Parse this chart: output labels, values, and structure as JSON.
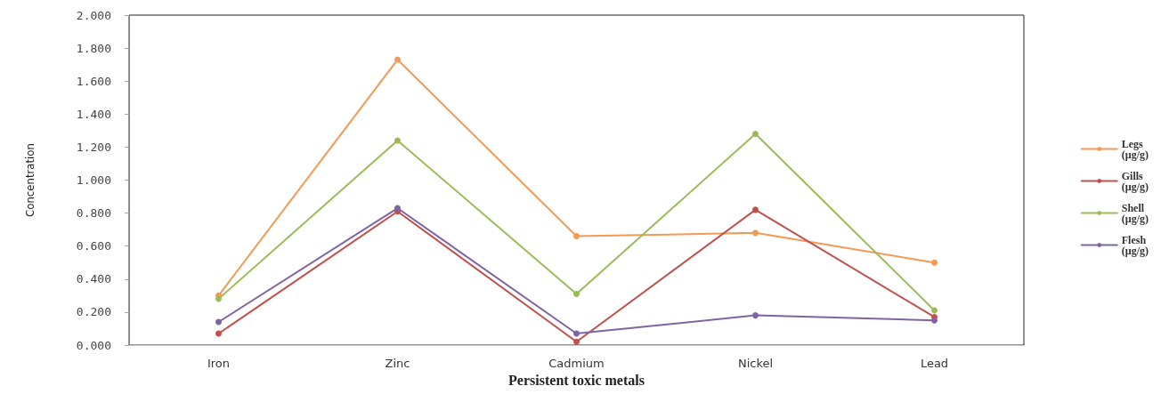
{
  "chart_data": {
    "type": "line",
    "xlabel": "Persistent toxic metals",
    "ylabel": "Concentration",
    "categories": [
      "Iron",
      "Zinc",
      "Cadmium",
      "Nickel",
      "Lead"
    ],
    "series": [
      {
        "name": "Legs (µg/g)",
        "color": "#f29a55",
        "values": [
          0.3,
          1.73,
          0.66,
          0.68,
          0.5
        ]
      },
      {
        "name": "Gills (µg/g)",
        "color": "#c0504d",
        "values": [
          0.07,
          0.81,
          0.02,
          0.82,
          0.17
        ]
      },
      {
        "name": "Shell (µg/g)",
        "color": "#9bbb59",
        "values": [
          0.28,
          1.24,
          0.31,
          1.28,
          0.21
        ]
      },
      {
        "name": "Flesh (µg/g)",
        "color": "#8064a2",
        "values": [
          0.14,
          0.83,
          0.07,
          0.18,
          0.15
        ]
      }
    ],
    "ylim": [
      0,
      2
    ],
    "yticks": [
      {
        "value": 0,
        "label": "0.000"
      },
      {
        "value": 0.2,
        "label": "0.200"
      },
      {
        "value": 0.4,
        "label": "0.400"
      },
      {
        "value": 0.6,
        "label": "0.600"
      },
      {
        "value": 0.8,
        "label": "0.800"
      },
      {
        "value": 1,
        "label": "1.000"
      },
      {
        "value": 1.2,
        "label": "1.200"
      },
      {
        "value": 1.4,
        "label": "1.400"
      },
      {
        "value": 1.6,
        "label": "1.600"
      },
      {
        "value": 1.8,
        "label": "1.800"
      },
      {
        "value": 2,
        "label": "2.000"
      }
    ],
    "legend": "right",
    "marker": "circle",
    "line_style": "solid"
  }
}
